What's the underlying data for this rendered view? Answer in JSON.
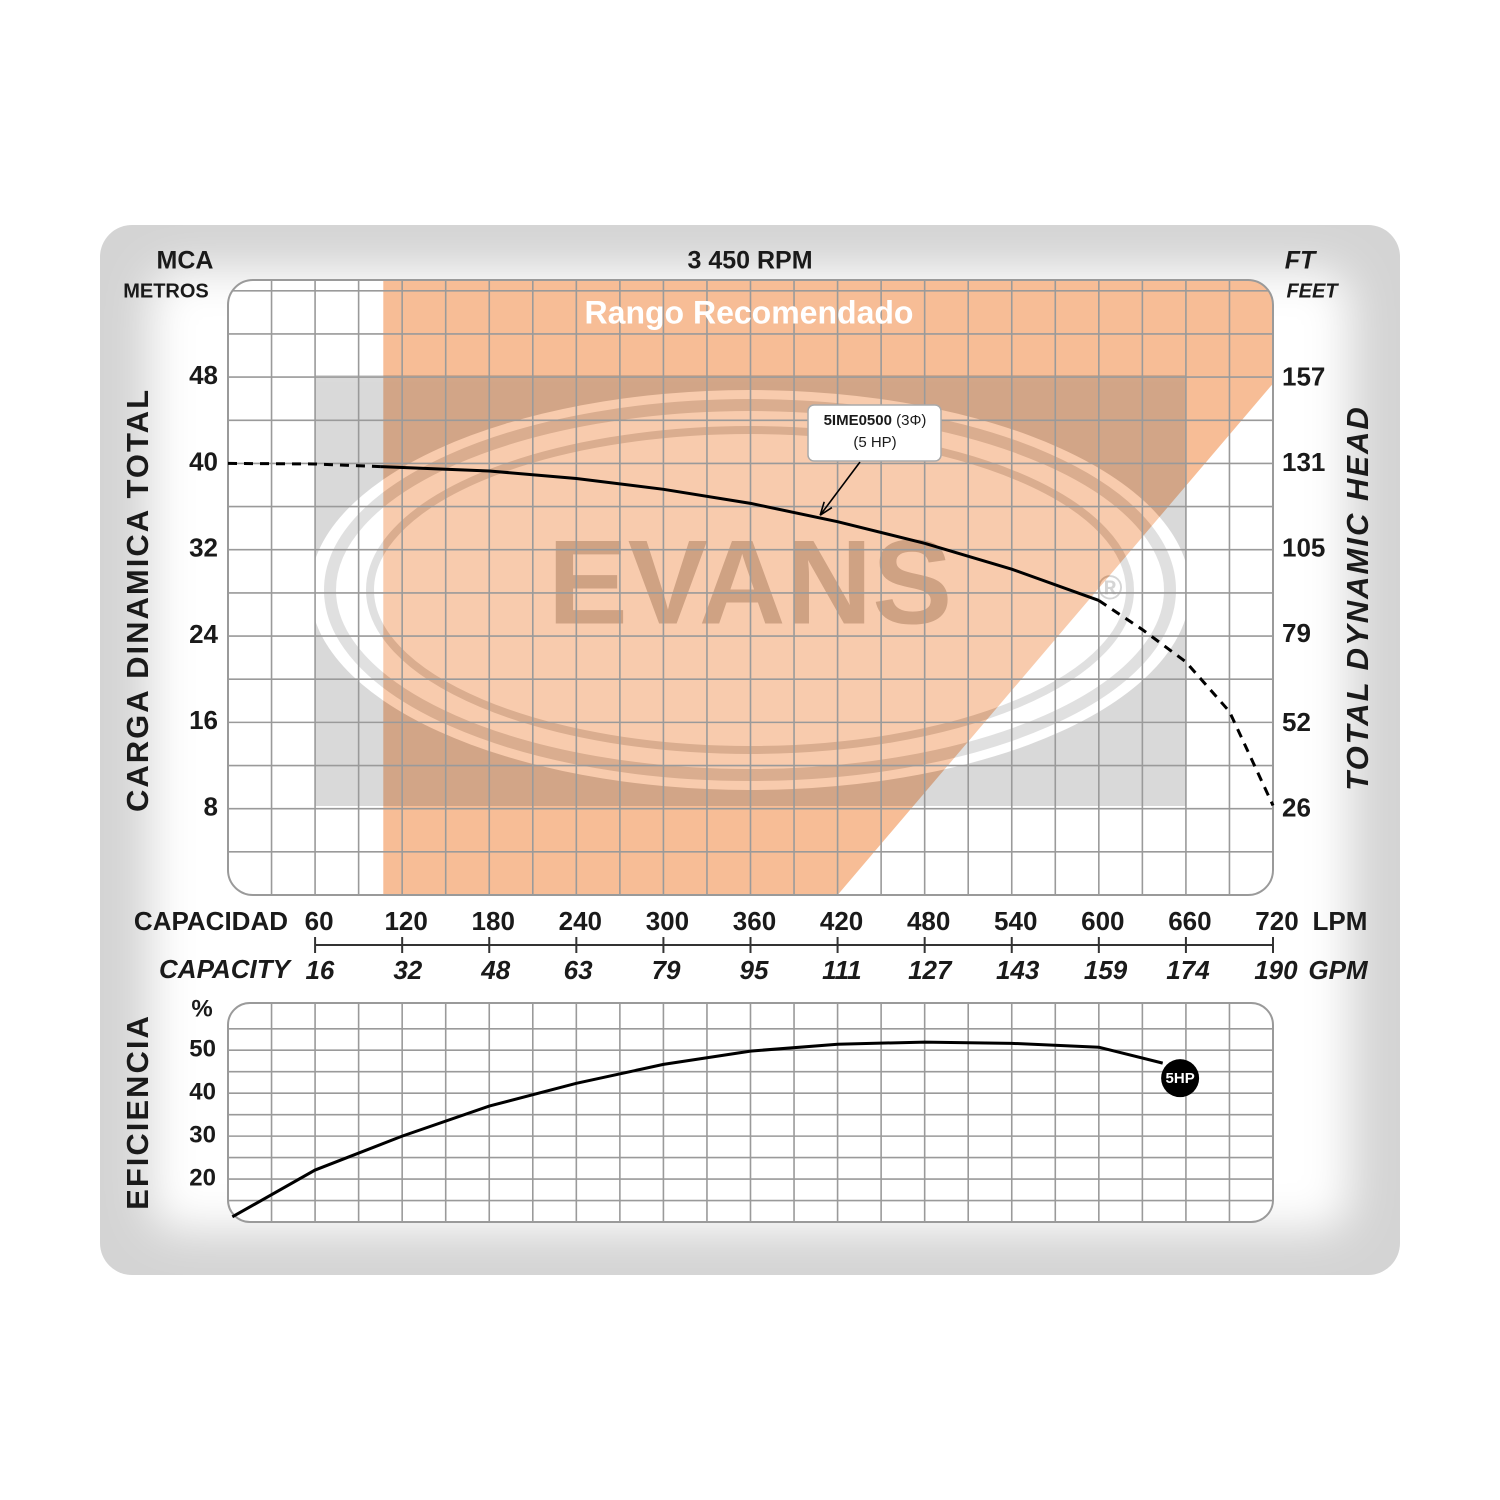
{
  "chart_data": [
    {
      "type": "line",
      "title": "3 450 RPM",
      "y_unit": "MCA",
      "y_unit_sub": "METROS",
      "y_label": "CARGA  DINAMICA  TOTAL",
      "y2_unit": "FT",
      "y2_unit_sub": "FEET",
      "y2_label": "TOTAL  DYNAMIC  HEAD",
      "x_label": "CAPACIDAD",
      "x_unit": "LPM",
      "x2_label": "CAPACITY",
      "x2_unit": "GPM",
      "xlim": [
        0,
        720
      ],
      "xticks": [
        60,
        120,
        180,
        240,
        300,
        360,
        420,
        480,
        540,
        600,
        660,
        720
      ],
      "xgrid": [
        30,
        60,
        90,
        120,
        150,
        180,
        210,
        240,
        270,
        300,
        330,
        360,
        390,
        420,
        450,
        480,
        510,
        540,
        570,
        600,
        630,
        660,
        690
      ],
      "x2lim": [
        0,
        190.2
      ],
      "x2ticks": [
        16,
        32,
        48,
        63,
        79,
        95,
        111,
        127,
        143,
        159,
        174,
        190
      ],
      "ylim": [
        0,
        57
      ],
      "yticks": [
        8,
        16,
        24,
        32,
        40,
        48
      ],
      "ygrid": [
        4,
        8,
        12,
        16,
        20,
        24,
        28,
        32,
        36,
        40,
        44,
        48,
        52,
        56
      ],
      "y2lim": [
        0,
        187
      ],
      "y2ticks": [
        26,
        52,
        79,
        105,
        131,
        157
      ],
      "series": [
        {
          "color": "#000000",
          "dash": true,
          "x": [
            0,
            60,
            105
          ],
          "values": [
            40,
            39.95,
            39.7
          ]
        },
        {
          "color": "#000000",
          "dash": false,
          "x": [
            105,
            180,
            240,
            300,
            360,
            420,
            480,
            540,
            600
          ],
          "values": [
            39.7,
            39.3,
            38.6,
            37.6,
            36.3,
            34.6,
            32.6,
            30.2,
            27.3
          ]
        },
        {
          "color": "#000000",
          "dash": true,
          "x": [
            600,
            630,
            660,
            690,
            720
          ],
          "values": [
            27.3,
            24.6,
            21.6,
            17.0,
            8.3
          ]
        }
      ],
      "recommended_range": {
        "label": "Rango Recomendado",
        "color": "#f7bd96",
        "x": [
          107,
          107,
          420,
          720,
          720
        ],
        "values": [
          57,
          0,
          0,
          47.4,
          57
        ]
      },
      "annotation": {
        "text": "5IME0500",
        "suffix": "(3Φ)",
        "line2": "(5 HP)",
        "x": 408,
        "y": 35.2
      },
      "watermark": "EVANS",
      "watermark_mark": "®"
    },
    {
      "type": "line",
      "y_label": "EFICIENCIA",
      "y_unit": "%",
      "xlim": [
        0,
        720
      ],
      "xgrid": [
        30,
        60,
        90,
        120,
        150,
        180,
        210,
        240,
        270,
        300,
        330,
        360,
        390,
        420,
        450,
        480,
        510,
        540,
        570,
        600,
        630,
        660,
        690
      ],
      "ylim": [
        10,
        61
      ],
      "yticks": [
        20,
        30,
        40,
        50
      ],
      "ygrid": [
        15,
        20,
        25,
        30,
        35,
        40,
        45,
        50,
        55
      ],
      "series": [
        {
          "color": "#000000",
          "x": [
            3,
            60,
            120,
            180,
            240,
            300,
            360,
            420,
            480,
            540,
            600,
            644
          ],
          "values": [
            11.2,
            22.1,
            30,
            37,
            42.3,
            46.7,
            49.8,
            51.4,
            51.9,
            51.6,
            50.7,
            47
          ]
        }
      ],
      "marker": {
        "label": "5HP",
        "x": 656,
        "y": 43.5
      }
    }
  ]
}
